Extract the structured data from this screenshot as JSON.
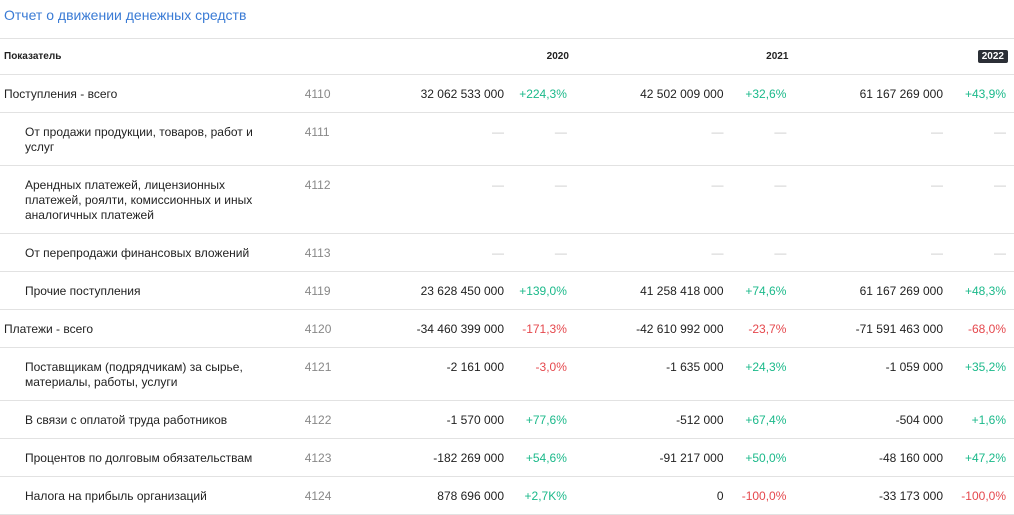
{
  "title": "Отчет о движении денежных средств",
  "header": {
    "label": "Показатель",
    "years": [
      "2020",
      "2021",
      "2022"
    ],
    "selected_year": "2022"
  },
  "rows": [
    {
      "name": "Поступления - всего",
      "code": "4110",
      "sub": false,
      "cells": [
        {
          "v": "32 062 533 000",
          "p": "+224,3%",
          "s": "pos"
        },
        {
          "v": "42 502 009 000",
          "p": "+32,6%",
          "s": "pos"
        },
        {
          "v": "61 167 269 000",
          "p": "+43,9%",
          "s": "pos"
        }
      ]
    },
    {
      "name": "От продажи продукции, товаров, работ и услуг",
      "code": "4111",
      "sub": true,
      "cells": [
        {
          "v": "—",
          "p": "—",
          "s": "dash"
        },
        {
          "v": "—",
          "p": "—",
          "s": "dash"
        },
        {
          "v": "—",
          "p": "—",
          "s": "dash"
        }
      ]
    },
    {
      "name": "Арендных платежей, лицензионных платежей, роялти, комиссионных и иных аналогичных платежей",
      "code": "4112",
      "sub": true,
      "cells": [
        {
          "v": "—",
          "p": "—",
          "s": "dash"
        },
        {
          "v": "—",
          "p": "—",
          "s": "dash"
        },
        {
          "v": "—",
          "p": "—",
          "s": "dash"
        }
      ]
    },
    {
      "name": "От перепродажи финансовых вложений",
      "code": "4113",
      "sub": true,
      "cells": [
        {
          "v": "—",
          "p": "—",
          "s": "dash"
        },
        {
          "v": "—",
          "p": "—",
          "s": "dash"
        },
        {
          "v": "—",
          "p": "—",
          "s": "dash"
        }
      ]
    },
    {
      "name": "Прочие поступления",
      "code": "4119",
      "sub": true,
      "cells": [
        {
          "v": "23 628 450 000",
          "p": "+139,0%",
          "s": "pos"
        },
        {
          "v": "41 258 418 000",
          "p": "+74,6%",
          "s": "pos"
        },
        {
          "v": "61 167 269 000",
          "p": "+48,3%",
          "s": "pos"
        }
      ]
    },
    {
      "name": "Платежи - всего",
      "code": "4120",
      "sub": false,
      "cells": [
        {
          "v": "-34 460 399 000",
          "p": "-171,3%",
          "s": "neg"
        },
        {
          "v": "-42 610 992 000",
          "p": "-23,7%",
          "s": "neg"
        },
        {
          "v": "-71 591 463 000",
          "p": "-68,0%",
          "s": "neg"
        }
      ]
    },
    {
      "name": "Поставщикам (подрядчикам) за сырье, материалы, работы, услуги",
      "code": "4121",
      "sub": true,
      "cells": [
        {
          "v": "-2 161 000",
          "p": "-3,0%",
          "s": "neg"
        },
        {
          "v": "-1 635 000",
          "p": "+24,3%",
          "s": "pos"
        },
        {
          "v": "-1 059 000",
          "p": "+35,2%",
          "s": "pos"
        }
      ]
    },
    {
      "name": "В связи с оплатой труда работников",
      "code": "4122",
      "sub": true,
      "cells": [
        {
          "v": "-1 570 000",
          "p": "+77,6%",
          "s": "pos"
        },
        {
          "v": "-512 000",
          "p": "+67,4%",
          "s": "pos"
        },
        {
          "v": "-504 000",
          "p": "+1,6%",
          "s": "pos"
        }
      ]
    },
    {
      "name": "Процентов по долговым обязательствам",
      "code": "4123",
      "sub": true,
      "cells": [
        {
          "v": "-182 269 000",
          "p": "+54,6%",
          "s": "pos"
        },
        {
          "v": "-91 217 000",
          "p": "+50,0%",
          "s": "pos"
        },
        {
          "v": "-48 160 000",
          "p": "+47,2%",
          "s": "pos"
        }
      ]
    },
    {
      "name": "Налога на прибыль организаций",
      "code": "4124",
      "sub": true,
      "cells": [
        {
          "v": "878 696 000",
          "p": "+2,7K%",
          "s": "pos"
        },
        {
          "v": "0",
          "p": "-100,0%",
          "s": "neg"
        },
        {
          "v": "-33 173 000",
          "p": "-100,0%",
          "s": "neg"
        }
      ]
    }
  ]
}
